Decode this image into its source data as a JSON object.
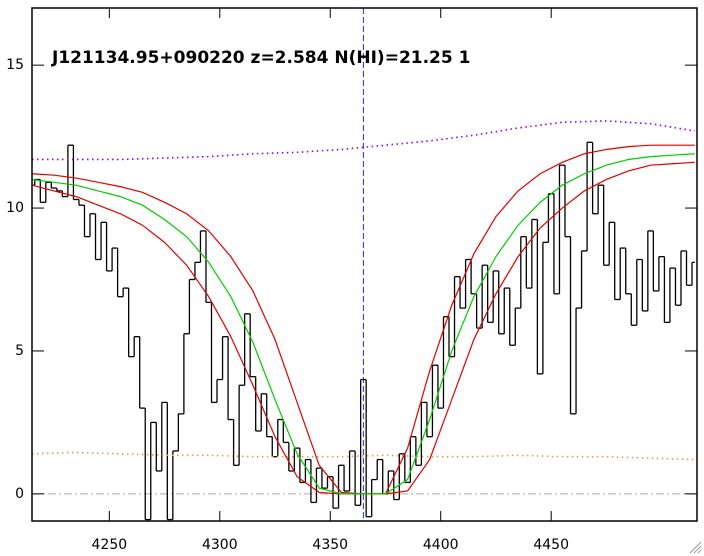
{
  "chart_data": {
    "type": "line",
    "title": "J121134.95+090220 z=2.584 N(HI)=21.25 1",
    "xlim": [
      4215,
      4516
    ],
    "ylim": [
      -0.95,
      17
    ],
    "xticks": [
      4250,
      4300,
      4350,
      4400,
      4450
    ],
    "yticks": [
      0,
      5,
      10,
      15
    ],
    "vline": {
      "x": 4365,
      "color": "#2233cc"
    },
    "hline": {
      "y": 0,
      "color": "#aaaaaa"
    },
    "series": [
      {
        "style": "step",
        "color": "#000000",
        "x": [
          4215,
          4217.5,
          4220,
          4222.5,
          4225,
          4227.5,
          4230,
          4232.5,
          4235,
          4237.5,
          4240,
          4242.5,
          4245,
          4247.5,
          4250,
          4252.5,
          4255,
          4257.5,
          4260,
          4262.5,
          4265,
          4267.5,
          4270,
          4272.5,
          4275,
          4277.5,
          4280,
          4282.5,
          4285,
          4287.5,
          4290,
          4292.5,
          4295,
          4297.5,
          4300,
          4302.5,
          4305,
          4307.5,
          4310,
          4312.5,
          4315,
          4317.5,
          4320,
          4322.5,
          4325,
          4327.5,
          4330,
          4332.5,
          4335,
          4337.5,
          4340,
          4342.5,
          4345,
          4347.5,
          4350,
          4352.5,
          4355,
          4357.5,
          4360,
          4362.5,
          4365,
          4367.5,
          4370,
          4372.5,
          4375,
          4377.5,
          4380,
          4382.5,
          4385,
          4387.5,
          4390,
          4392.5,
          4395,
          4397.5,
          4400,
          4402.5,
          4405,
          4407.5,
          4410,
          4412.5,
          4415,
          4417.5,
          4420,
          4422.5,
          4425,
          4427.5,
          4430,
          4432.5,
          4435,
          4437.5,
          4440,
          4442.5,
          4445,
          4447.5,
          4450,
          4452.5,
          4455,
          4457.5,
          4460,
          4462.5,
          4465,
          4467.5,
          4470,
          4472.5,
          4475,
          4477.5,
          4480,
          4482.5,
          4485,
          4487.5,
          4490,
          4492.5,
          4495,
          4497.5,
          4500,
          4502.5,
          4505,
          4507.5,
          4510,
          4512.5,
          4515
        ],
        "values": [
          10.8,
          11.0,
          10.2,
          10.9,
          10.7,
          10.6,
          10.4,
          12.2,
          10.3,
          10.1,
          9.0,
          9.8,
          8.2,
          9.5,
          7.8,
          8.6,
          6.9,
          7.2,
          4.8,
          5.5,
          3.0,
          -0.9,
          2.5,
          0.8,
          3.2,
          -0.9,
          1.5,
          2.8,
          5.6,
          7.5,
          8.1,
          9.2,
          6.7,
          3.2,
          4.0,
          5.5,
          2.6,
          1.0,
          3.8,
          6.3,
          4.1,
          2.2,
          3.5,
          2.0,
          1.3,
          2.6,
          1.8,
          0.8,
          1.6,
          0.4,
          1.2,
          -0.3,
          0.9,
          0.2,
          0.6,
          -0.5,
          1.0,
          0.1,
          1.5,
          -0.4,
          4.0,
          -0.8,
          0.5,
          1.2,
          0.0,
          0.8,
          -0.2,
          1.4,
          0.4,
          2.0,
          1.0,
          3.2,
          2.0,
          4.5,
          3.0,
          6.2,
          4.8,
          7.6,
          6.5,
          8.2,
          7.0,
          5.8,
          8.0,
          6.0,
          7.8,
          5.6,
          7.2,
          5.2,
          6.5,
          9.0,
          7.2,
          9.6,
          4.2,
          8.8,
          10.5,
          7.0,
          11.5,
          9.0,
          2.8,
          6.5,
          8.5,
          12.3,
          9.8,
          10.8,
          8.0,
          9.5,
          6.8,
          8.6,
          7.0,
          5.9,
          8.2,
          6.4,
          9.2,
          7.1,
          8.3,
          6.0,
          7.9,
          6.6,
          8.5,
          7.3,
          8.1
        ]
      },
      {
        "style": "dotted",
        "color": "#8a00ff",
        "x": [
          4215,
          4235,
          4255,
          4275,
          4295,
          4315,
          4335,
          4355,
          4375,
          4395,
          4415,
          4435,
          4455,
          4475,
          4495,
          4515
        ],
        "values": [
          11.7,
          11.7,
          11.7,
          11.75,
          11.8,
          11.9,
          11.95,
          12.05,
          12.2,
          12.35,
          12.55,
          12.8,
          13.0,
          13.05,
          12.95,
          12.7
        ]
      },
      {
        "style": "dotted",
        "color": "#e09a50",
        "x": [
          4215,
          4235,
          4255,
          4275,
          4295,
          4315,
          4335,
          4355,
          4375,
          4395,
          4415,
          4435,
          4455,
          4475,
          4495,
          4515
        ],
        "values": [
          1.4,
          1.45,
          1.4,
          1.35,
          1.35,
          1.3,
          1.3,
          1.3,
          1.35,
          1.3,
          1.3,
          1.35,
          1.3,
          1.3,
          1.25,
          1.2
        ]
      },
      {
        "style": "solid",
        "color": "#e00000",
        "x": [
          4215,
          4225,
          4235,
          4245,
          4255,
          4265,
          4275,
          4285,
          4295,
          4305,
          4315,
          4325,
          4335,
          4345,
          4355,
          4365,
          4375,
          4385,
          4395,
          4405,
          4415,
          4425,
          4435,
          4445,
          4455,
          4465,
          4475,
          4485,
          4495,
          4505,
          4515
        ],
        "values": [
          11.2,
          11.15,
          11.05,
          10.9,
          10.75,
          10.55,
          10.2,
          9.8,
          9.2,
          8.3,
          7.1,
          5.4,
          3.2,
          1.0,
          0.05,
          0,
          0,
          1.6,
          4.3,
          6.6,
          8.4,
          9.7,
          10.6,
          11.2,
          11.6,
          11.9,
          12.05,
          12.15,
          12.2,
          12.2,
          12.2
        ]
      },
      {
        "style": "solid",
        "color": "#e00000",
        "x": [
          4215,
          4225,
          4235,
          4245,
          4255,
          4265,
          4275,
          4285,
          4295,
          4305,
          4315,
          4325,
          4335,
          4345,
          4355,
          4365,
          4375,
          4385,
          4395,
          4405,
          4415,
          4425,
          4435,
          4445,
          4455,
          4465,
          4475,
          4485,
          4495,
          4505,
          4515
        ],
        "values": [
          10.8,
          10.6,
          10.4,
          10.1,
          9.8,
          9.4,
          8.8,
          8.0,
          6.9,
          5.5,
          3.8,
          2.0,
          0.6,
          0.05,
          0,
          0,
          0,
          0.1,
          1.2,
          3.3,
          5.4,
          7.0,
          8.3,
          9.3,
          10.0,
          10.6,
          11.0,
          11.3,
          11.5,
          11.55,
          11.6
        ]
      },
      {
        "style": "solid",
        "color": "#00cc00",
        "x": [
          4215,
          4225,
          4235,
          4245,
          4255,
          4265,
          4275,
          4285,
          4295,
          4305,
          4315,
          4325,
          4335,
          4345,
          4355,
          4365,
          4375,
          4385,
          4395,
          4405,
          4415,
          4425,
          4435,
          4445,
          4455,
          4465,
          4475,
          4485,
          4495,
          4505,
          4515
        ],
        "values": [
          11.0,
          10.9,
          10.8,
          10.6,
          10.4,
          10.1,
          9.6,
          9.0,
          8.1,
          6.9,
          5.3,
          3.3,
          1.4,
          0.2,
          0.0,
          0.0,
          0.0,
          0.5,
          2.6,
          5.0,
          6.9,
          8.3,
          9.4,
          10.2,
          10.8,
          11.2,
          11.5,
          11.7,
          11.8,
          11.85,
          11.9
        ]
      }
    ]
  }
}
